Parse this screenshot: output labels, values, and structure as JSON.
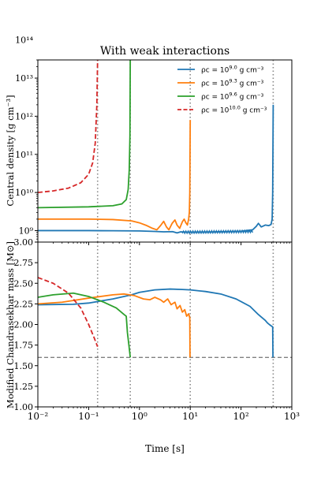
{
  "chart_data": [
    {
      "type": "line",
      "title": "With weak interactions",
      "ylabel": "Central density [g cm$^{-3}$]",
      "ylabel_display": "Central density [g cm⁻³]",
      "xscale": "log",
      "yscale": "log",
      "xlim": [
        0.01,
        1000
      ],
      "ylim": [
        500000000,
        30000000000000
      ],
      "ytick_labels": [
        "10⁹",
        "10¹⁰",
        "10¹¹",
        "10¹²",
        "10¹³",
        "10¹⁴"
      ],
      "legend_position": "top-right",
      "legend": [
        {
          "prefix": "ρc = 10",
          "exp": "9.0",
          "suffix": " g cm⁻³",
          "color": "#1f77b4",
          "dash": "solid"
        },
        {
          "prefix": "ρc = 10",
          "exp": "9.3",
          "suffix": " g cm⁻³",
          "color": "#ff7f0e",
          "dash": "solid"
        },
        {
          "prefix": "ρc = 10",
          "exp": "9.6",
          "suffix": " g cm⁻³",
          "color": "#2ca02c",
          "dash": "solid"
        },
        {
          "prefix": "ρc = 10",
          "exp": "10.0",
          "suffix": " g cm⁻³",
          "color": "#d62728",
          "dash": "dashed"
        }
      ],
      "series": [
        {
          "color": "#1f77b4",
          "dash": "solid",
          "points": [
            [
              0.01,
              1000000000.0
            ],
            [
              0.03,
              1000000000.0
            ],
            [
              0.1,
              1000000000.0
            ],
            [
              0.3,
              990000000.0
            ],
            [
              1,
              980000000.0
            ],
            [
              2,
              950000000.0
            ],
            [
              3,
              930000000.0
            ],
            [
              4.5,
              940000000.0
            ],
            [
              5.5,
              870000000.0
            ],
            [
              6.5,
              930000000.0
            ],
            [
              10,
              900000000.0
            ],
            [
              30,
              920000000.0
            ],
            [
              100,
              960000000.0
            ],
            [
              170,
              1050000000.0
            ],
            [
              200,
              1300000000.0
            ],
            [
              220,
              1550000000.0
            ],
            [
              250,
              1250000000.0
            ],
            [
              300,
              1400000000.0
            ],
            [
              350,
              1350000000.0
            ],
            [
              390,
              1450000000.0
            ],
            [
              410,
              2000000000.0
            ],
            [
              420,
              10000000000.0
            ],
            [
              430,
              2000000000000.0
            ]
          ]
        },
        {
          "color": "#ff7f0e",
          "dash": "solid",
          "points": [
            [
              0.01,
              2000000000.0
            ],
            [
              0.1,
              2000000000.0
            ],
            [
              0.3,
              1950000000.0
            ],
            [
              0.7,
              1800000000.0
            ],
            [
              1.0,
              1600000000.0
            ],
            [
              1.4,
              1350000000.0
            ],
            [
              1.8,
              1150000000.0
            ],
            [
              2.2,
              1050000000.0
            ],
            [
              2.6,
              1350000000.0
            ],
            [
              3.0,
              1750000000.0
            ],
            [
              3.4,
              1250000000.0
            ],
            [
              3.8,
              1050000000.0
            ],
            [
              4.4,
              1550000000.0
            ],
            [
              5.0,
              1900000000.0
            ],
            [
              5.5,
              1400000000.0
            ],
            [
              6.2,
              1150000000.0
            ],
            [
              7.0,
              1700000000.0
            ],
            [
              7.6,
              2000000000.0
            ],
            [
              8.2,
              1600000000.0
            ],
            [
              8.8,
              1400000000.0
            ],
            [
              9.3,
              2000000000.0
            ],
            [
              9.6,
              3000000000.0
            ],
            [
              9.8,
              10000000000.0
            ],
            [
              9.9,
              100000000000.0
            ],
            [
              10,
              800000000000.0
            ]
          ]
        },
        {
          "color": "#2ca02c",
          "dash": "solid",
          "points": [
            [
              0.01,
              4000000000.0
            ],
            [
              0.1,
              4200000000.0
            ],
            [
              0.3,
              4500000000.0
            ],
            [
              0.45,
              5000000000.0
            ],
            [
              0.55,
              6500000000.0
            ],
            [
              0.6,
              12000000000.0
            ],
            [
              0.63,
              40000000000.0
            ],
            [
              0.65,
              300000000000.0
            ],
            [
              0.66,
              40000000000000.0
            ]
          ]
        },
        {
          "color": "#d62728",
          "dash": "dashed",
          "points": [
            [
              0.01,
              10000000000.0
            ],
            [
              0.02,
              11000000000.0
            ],
            [
              0.04,
              13000000000.0
            ],
            [
              0.07,
              18000000000.0
            ],
            [
              0.1,
              30000000000.0
            ],
            [
              0.12,
              60000000000.0
            ],
            [
              0.135,
              200000000000.0
            ],
            [
              0.145,
              2000000000000.0
            ],
            [
              0.15,
              30000000000000.0
            ]
          ]
        }
      ],
      "vlines": [
        0.15,
        0.66,
        10,
        430
      ]
    },
    {
      "type": "line",
      "xlabel": "Time [s]",
      "ylabel": "Modified Chandrasekhar mass [$M_\\odot$]",
      "ylabel_display": "Modified Chandrasekhar mass [M⊙]",
      "xscale": "log",
      "xlim": [
        0.01,
        1000
      ],
      "ylim": [
        1.0,
        3.0
      ],
      "yticks": [
        1.0,
        1.25,
        1.5,
        1.75,
        2.0,
        2.25,
        2.5,
        2.75,
        3.0
      ],
      "ytick_labels": [
        "1.00",
        "1.25",
        "1.50",
        "1.75",
        "2.00",
        "2.25",
        "2.50",
        "2.75",
        "3.00"
      ],
      "xtick_labels": [
        "10⁻²",
        "10⁻¹",
        "10⁰",
        "10¹",
        "10²",
        "10³"
      ],
      "hline": 1.6,
      "vlines": [
        0.15,
        0.66,
        10,
        430
      ],
      "series": [
        {
          "color": "#1f77b4",
          "dash": "solid",
          "points": [
            [
              0.01,
              2.24
            ],
            [
              0.05,
              2.245
            ],
            [
              0.1,
              2.26
            ],
            [
              0.3,
              2.31
            ],
            [
              0.7,
              2.36
            ],
            [
              1.0,
              2.39
            ],
            [
              2,
              2.42
            ],
            [
              4,
              2.43
            ],
            [
              7,
              2.425
            ],
            [
              10,
              2.42
            ],
            [
              20,
              2.4
            ],
            [
              40,
              2.37
            ],
            [
              80,
              2.31
            ],
            [
              150,
              2.22
            ],
            [
              220,
              2.12
            ],
            [
              300,
              2.05
            ],
            [
              330,
              2.02
            ],
            [
              360,
              2.0
            ],
            [
              400,
              1.98
            ],
            [
              420,
              1.97
            ],
            [
              425,
              1.6
            ]
          ]
        },
        {
          "color": "#ff7f0e",
          "dash": "solid",
          "points": [
            [
              0.01,
              2.25
            ],
            [
              0.03,
              2.27
            ],
            [
              0.1,
              2.32
            ],
            [
              0.3,
              2.36
            ],
            [
              0.5,
              2.37
            ],
            [
              0.8,
              2.35
            ],
            [
              1.2,
              2.31
            ],
            [
              1.6,
              2.3
            ],
            [
              2.0,
              2.33
            ],
            [
              2.6,
              2.3
            ],
            [
              3.0,
              2.27
            ],
            [
              3.6,
              2.31
            ],
            [
              4.2,
              2.24
            ],
            [
              5.0,
              2.27
            ],
            [
              5.5,
              2.19
            ],
            [
              6.3,
              2.23
            ],
            [
              7.0,
              2.15
            ],
            [
              7.8,
              2.18
            ],
            [
              8.5,
              2.1
            ],
            [
              9.3,
              2.13
            ],
            [
              9.8,
              2.08
            ],
            [
              9.9,
              1.6
            ]
          ]
        },
        {
          "color": "#2ca02c",
          "dash": "solid",
          "points": [
            [
              0.01,
              2.33
            ],
            [
              0.02,
              2.36
            ],
            [
              0.05,
              2.38
            ],
            [
              0.1,
              2.34
            ],
            [
              0.2,
              2.27
            ],
            [
              0.35,
              2.2
            ],
            [
              0.5,
              2.12
            ],
            [
              0.55,
              2.1
            ],
            [
              0.58,
              1.9
            ],
            [
              0.62,
              1.75
            ],
            [
              0.66,
              1.6
            ]
          ]
        },
        {
          "color": "#d62728",
          "dash": "dashed",
          "points": [
            [
              0.01,
              2.57
            ],
            [
              0.02,
              2.5
            ],
            [
              0.04,
              2.38
            ],
            [
              0.07,
              2.2
            ],
            [
              0.1,
              2.0
            ],
            [
              0.13,
              1.83
            ],
            [
              0.15,
              1.73
            ]
          ]
        }
      ]
    }
  ]
}
